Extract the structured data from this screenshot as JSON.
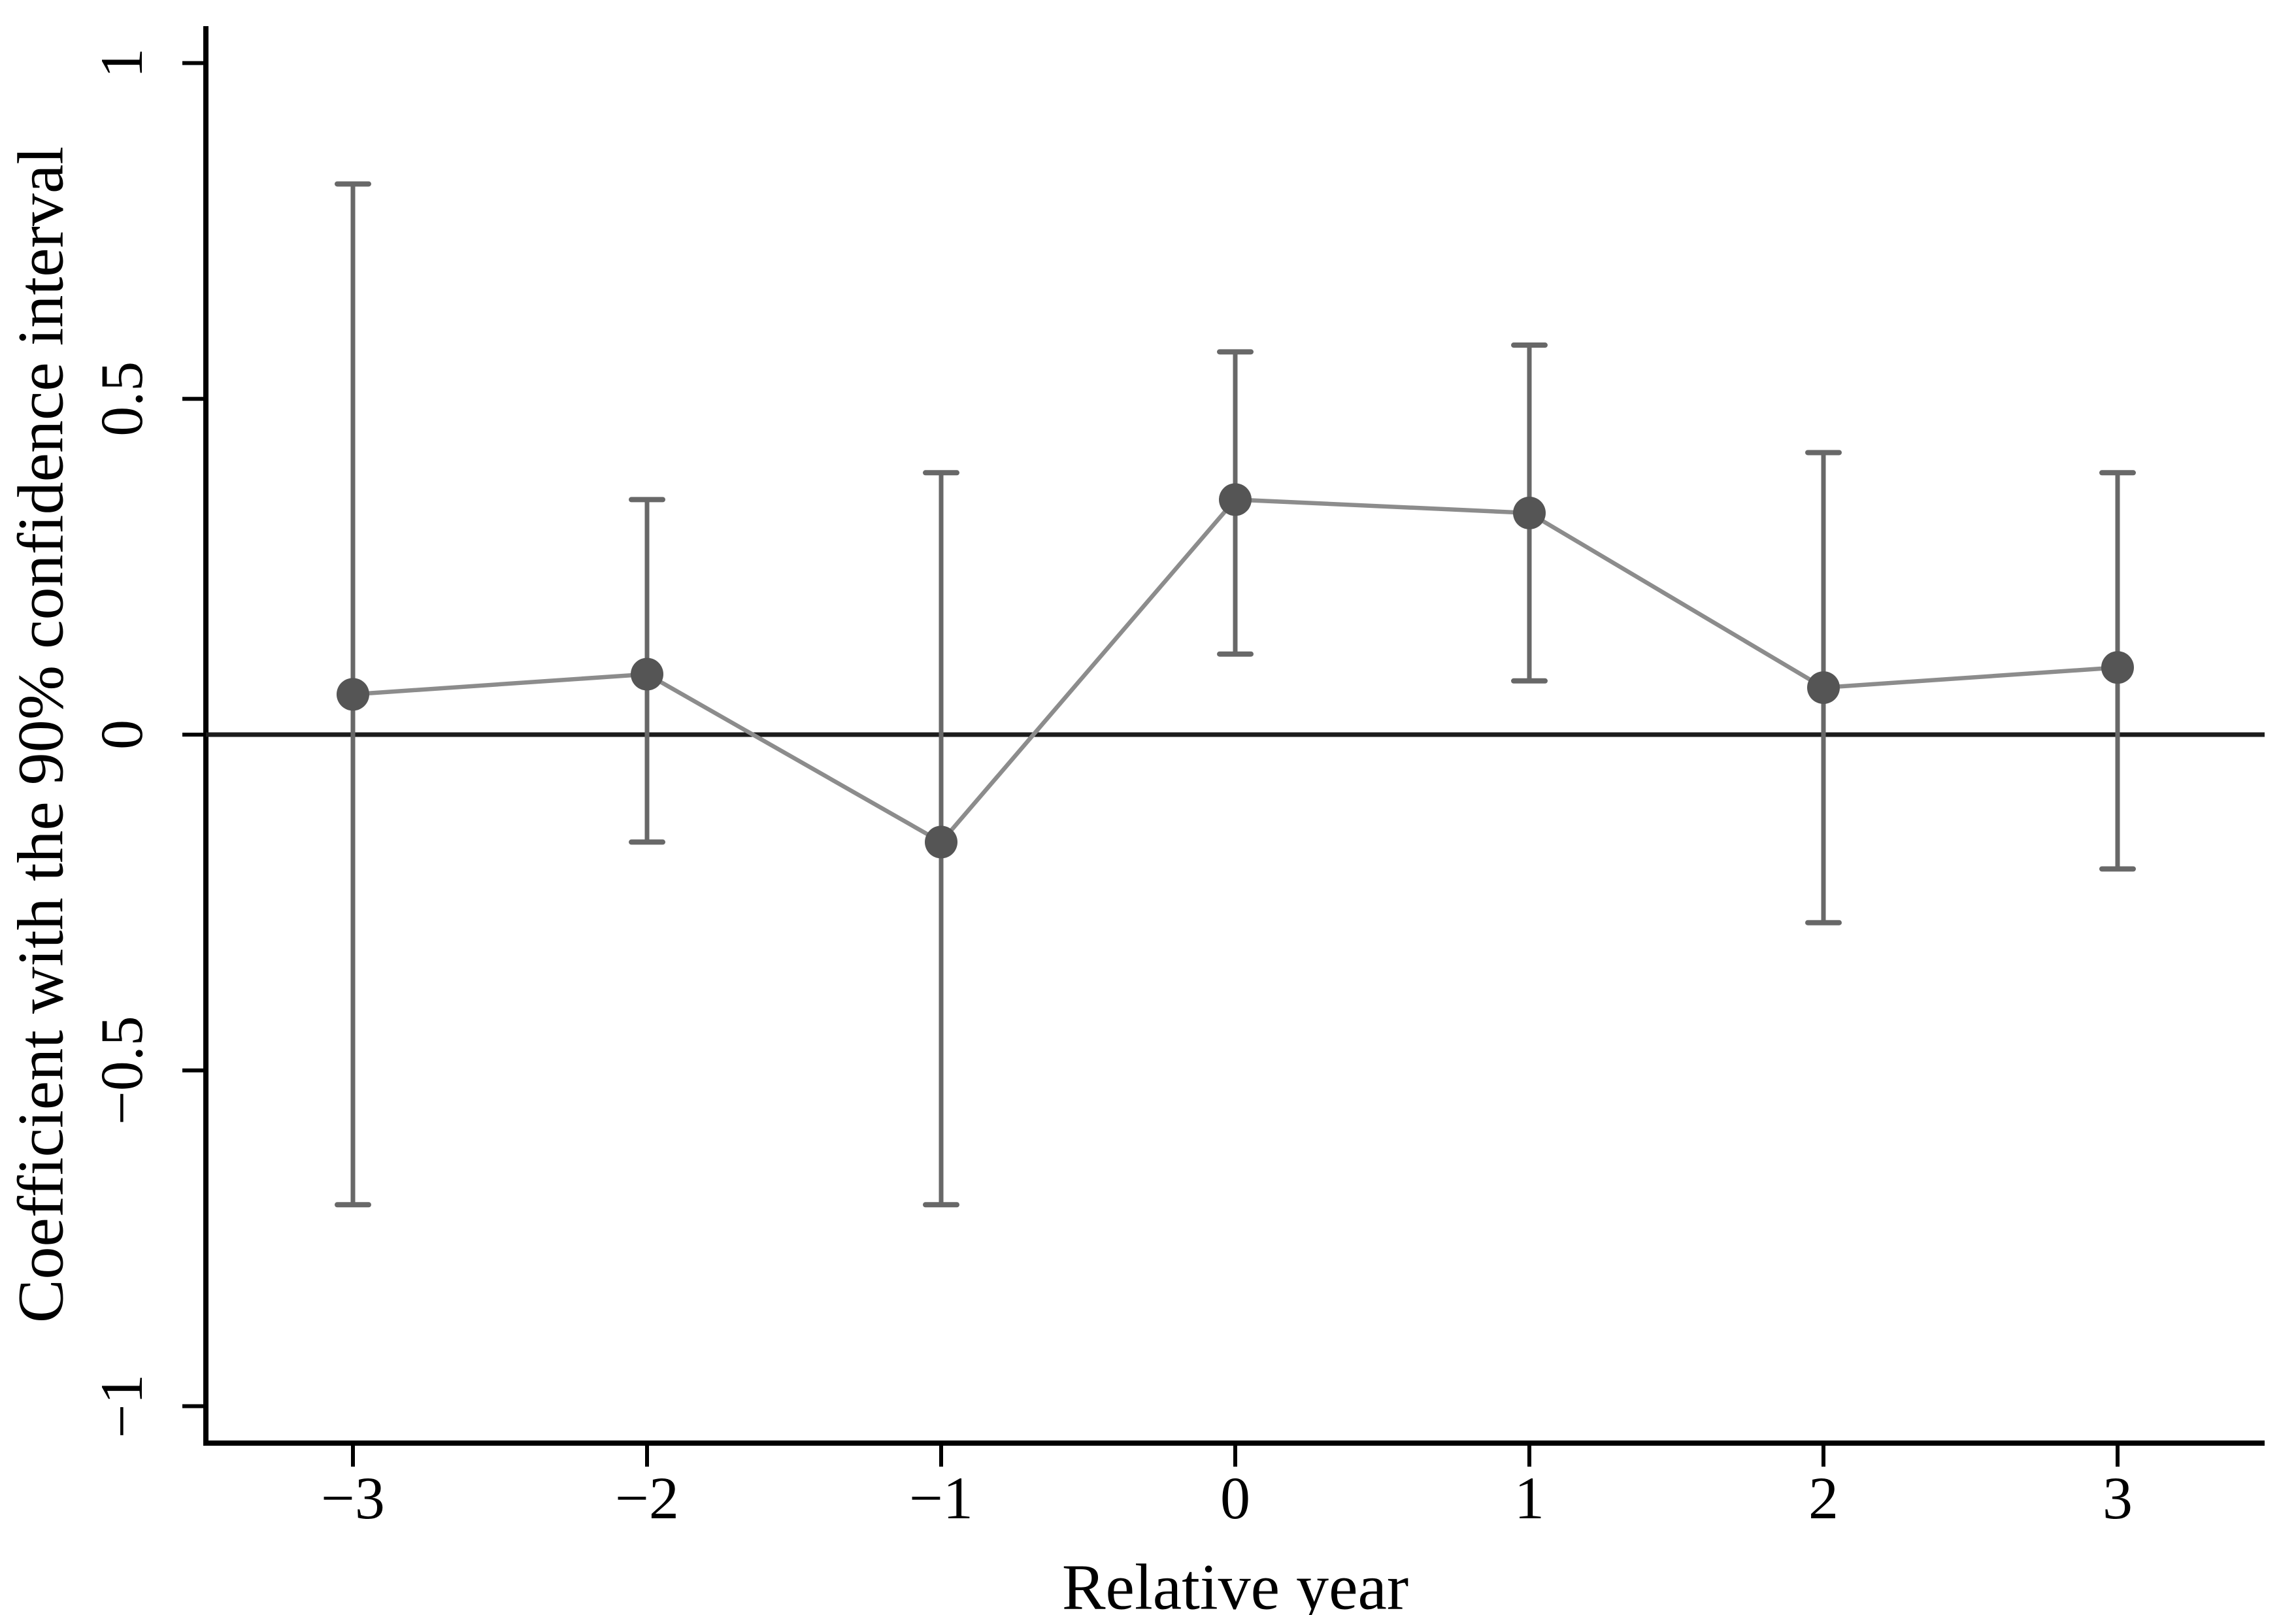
{
  "chart_data": {
    "type": "line",
    "title": "",
    "xlabel": "Relative year",
    "ylabel": "Coefficient with the 90% confidence interval",
    "x": [
      -3,
      -2,
      -1,
      0,
      1,
      2,
      3
    ],
    "series": [
      {
        "name": "coefficient",
        "values": [
          0.06,
          0.09,
          -0.16,
          0.35,
          0.33,
          0.07,
          0.1
        ]
      },
      {
        "name": "ci_lower_90",
        "values": [
          -0.7,
          -0.16,
          -0.7,
          0.12,
          0.08,
          -0.28,
          -0.2
        ]
      },
      {
        "name": "ci_upper_90",
        "values": [
          0.82,
          0.35,
          0.39,
          0.57,
          0.58,
          0.42,
          0.39
        ]
      }
    ],
    "x_tick_labels": [
      "−3",
      "−2",
      "−1",
      "0",
      "1",
      "2",
      "3"
    ],
    "y_ticks": [
      {
        "value": 1,
        "label": "1"
      },
      {
        "value": 0.5,
        "label": "0.5"
      },
      {
        "value": 0,
        "label": "0"
      },
      {
        "value": -0.5,
        "label": "−0.5"
      },
      {
        "value": -1,
        "label": "−1"
      }
    ],
    "xlim": [
      -3.5,
      3.5
    ],
    "ylim": [
      -1.055,
      1.055
    ],
    "zero_line": 0,
    "grid": false,
    "legend": false,
    "marker_shape": "circle",
    "colors": {
      "marker": "#555555",
      "error_bar": "#686868",
      "connector": "#8c8c8c",
      "zero_line": "#1c1c1c",
      "axis": "#000000",
      "background": "#ffffff"
    }
  }
}
